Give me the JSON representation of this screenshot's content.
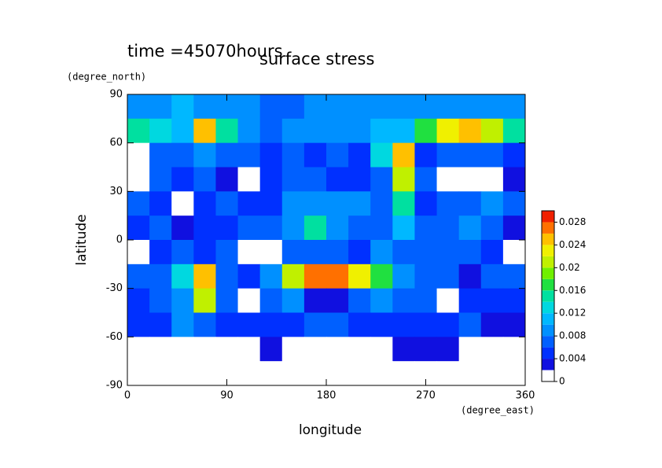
{
  "chart_data": {
    "type": "contour",
    "title": "surface stress",
    "subtitle": "time =45070hours",
    "x_label": "longitude",
    "x_units": "(degree_east)",
    "y_label": "latitude",
    "y_units": "(degree_north)",
    "xlim": [
      0,
      360
    ],
    "xticks": [
      0,
      90,
      180,
      270,
      360
    ],
    "ylim": [
      -90,
      90
    ],
    "yticks": [
      -90,
      -60,
      -30,
      0,
      30,
      60,
      90
    ],
    "x": [
      10,
      30,
      50,
      70,
      90,
      110,
      130,
      150,
      170,
      190,
      210,
      230,
      250,
      270,
      290,
      310,
      330,
      350
    ],
    "y": [
      82.5,
      67.5,
      52.5,
      37.5,
      22.5,
      7.5,
      -7.5,
      -22.5,
      -37.5,
      -52.5,
      -67.5,
      -82.5
    ],
    "z": [
      [
        0.008,
        0.009,
        0.01,
        0.009,
        0.008,
        0.008,
        0.007,
        0.007,
        0.008,
        0.008,
        0.008,
        0.008,
        0.008,
        0.008,
        0.008,
        0.008,
        0.009,
        0.008
      ],
      [
        0.014,
        0.012,
        0.01,
        0.024,
        0.014,
        0.008,
        0.007,
        0.008,
        0.009,
        0.008,
        0.009,
        0.01,
        0.01,
        0.016,
        0.022,
        0.024,
        0.02,
        0.014
      ],
      [
        0.001,
        0.006,
        0.006,
        0.008,
        0.006,
        0.006,
        0.005,
        0.006,
        0.005,
        0.006,
        0.005,
        0.012,
        0.024,
        0.005,
        0.006,
        0.006,
        0.006,
        0.004
      ],
      [
        0.001,
        0.006,
        0.005,
        0.006,
        0.002,
        0.001,
        0.004,
        0.006,
        0.006,
        0.005,
        0.005,
        0.006,
        0.02,
        0.006,
        0.001,
        0.001,
        0.001,
        0.002
      ],
      [
        0.006,
        0.005,
        0.001,
        0.004,
        0.006,
        0.005,
        0.004,
        0.008,
        0.008,
        0.009,
        0.008,
        0.006,
        0.014,
        0.004,
        0.006,
        0.007,
        0.008,
        0.006
      ],
      [
        0.005,
        0.006,
        0.003,
        0.005,
        0.005,
        0.006,
        0.006,
        0.008,
        0.014,
        0.008,
        0.006,
        0.006,
        0.01,
        0.006,
        0.007,
        0.008,
        0.006,
        0.002
      ],
      [
        0.001,
        0.004,
        0.006,
        0.005,
        0.006,
        0.001,
        0.001,
        0.006,
        0.006,
        0.006,
        0.005,
        0.009,
        0.006,
        0.006,
        0.006,
        0.006,
        0.004,
        0.001
      ],
      [
        0.006,
        0.006,
        0.012,
        0.024,
        0.006,
        0.004,
        0.008,
        0.02,
        0.026,
        0.026,
        0.022,
        0.016,
        0.008,
        0.006,
        0.006,
        0.003,
        0.006,
        0.006
      ],
      [
        0.005,
        0.007,
        0.008,
        0.02,
        0.006,
        0.001,
        0.006,
        0.008,
        0.002,
        0.002,
        0.006,
        0.008,
        0.006,
        0.006,
        0.001,
        0.004,
        0.004,
        0.005
      ],
      [
        0.004,
        0.005,
        0.008,
        0.007,
        0.005,
        0.004,
        0.005,
        0.005,
        0.006,
        0.006,
        0.005,
        0.005,
        0.005,
        0.005,
        0.005,
        0.006,
        0.003,
        0.002
      ],
      [
        0.001,
        0.001,
        0.001,
        0.001,
        0.001,
        0.001,
        0.003,
        0.001,
        0.001,
        0.001,
        0.001,
        0.001,
        0.003,
        0.003,
        0.003,
        0.001,
        0.001,
        0.001
      ],
      [
        0,
        0,
        0,
        0,
        0,
        0,
        0,
        0,
        0,
        0,
        0,
        0,
        0,
        0,
        0,
        0,
        0,
        0
      ]
    ],
    "zlim": [
      0,
      0.03
    ],
    "zticks": [
      0,
      0.004,
      0.008,
      0.012,
      0.016,
      0.02,
      0.024,
      0.028
    ],
    "levels": [
      0,
      0.002,
      0.004,
      0.006,
      0.008,
      0.01,
      0.012,
      0.014,
      0.016,
      0.018,
      0.02,
      0.022,
      0.024,
      0.026,
      0.028
    ],
    "colors": [
      "#ffffff",
      "#1010e0",
      "#0030ff",
      "#0060ff",
      "#0090ff",
      "#00b8ff",
      "#00d8e0",
      "#00e0a0",
      "#20e040",
      "#70f000",
      "#c0f000",
      "#f0f000",
      "#ffc000",
      "#ff7000",
      "#f02000"
    ]
  }
}
